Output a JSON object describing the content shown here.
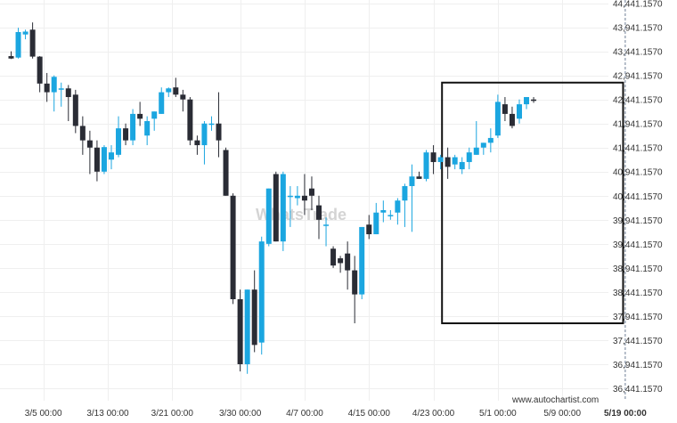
{
  "chart_data": {
    "type": "candlestick",
    "title": "",
    "xlabel": "",
    "ylabel": "",
    "ylim": [
      36191.157,
      44516.157
    ],
    "grid": true,
    "y_ticks": [
      "44,441.1570",
      "43,941.1570",
      "43,441.1570",
      "42,941.1570",
      "42,441.1570",
      "41,941.1570",
      "41,441.1570",
      "40,941.1570",
      "40,441.1570",
      "39,941.1570",
      "39,441.1570",
      "38,941.1570",
      "38,441.1570",
      "37,941.1570",
      "37,441.1570",
      "36,941.1570",
      "36,441.1570"
    ],
    "y_tick_values": [
      44441.157,
      43941.157,
      43441.157,
      42941.157,
      42441.157,
      41941.157,
      41441.157,
      40941.157,
      40441.157,
      39941.157,
      39441.157,
      38941.157,
      38441.157,
      37941.157,
      37441.157,
      36941.157,
      36441.157
    ],
    "x_ticks": [
      "3/5 00:00",
      "3/13 00:00",
      "3/21 00:00",
      "3/30 00:00",
      "4/7 00:00",
      "4/15 00:00",
      "4/23 00:00",
      "5/1 00:00",
      "5/9 00:00"
    ],
    "x_tick_index": [
      4.5,
      13.5,
      22.5,
      32,
      41,
      50,
      59,
      68,
      77
    ],
    "now_label": "5/19 00:00",
    "now_index": 85.8,
    "pattern_box": {
      "start_index": 60.2,
      "end_index": 85.5,
      "high": 42800,
      "low": 37800
    },
    "colors": {
      "up": "#1ba6e0",
      "down": "#2a2c35",
      "grid": "#efefef",
      "box": "#111111",
      "now_line": "#6f7f95"
    },
    "candles": [
      [
        43350,
        43450,
        43290,
        43300
      ],
      [
        43320,
        43940,
        43300,
        43850
      ],
      [
        43800,
        43900,
        43700,
        43860
      ],
      [
        43900,
        44050,
        43300,
        43340
      ],
      [
        43340,
        43350,
        42600,
        42780
      ],
      [
        42780,
        43000,
        42400,
        42600
      ],
      [
        42600,
        42950,
        42200,
        42920
      ],
      [
        42680,
        42800,
        42300,
        42680
      ],
      [
        42680,
        42750,
        42000,
        42500
      ],
      [
        42550,
        42650,
        41750,
        41900
      ],
      [
        41900,
        42100,
        41300,
        41600
      ],
      [
        41600,
        41800,
        40900,
        41450
      ],
      [
        41450,
        41600,
        40750,
        40950
      ],
      [
        40950,
        41500,
        40900,
        41460
      ],
      [
        41200,
        41500,
        41000,
        41350
      ],
      [
        41300,
        42100,
        41250,
        41850
      ],
      [
        41850,
        41950,
        41500,
        41600
      ],
      [
        41600,
        42250,
        41500,
        42150
      ],
      [
        42150,
        42400,
        41900,
        42050
      ],
      [
        41700,
        42100,
        41500,
        42000
      ],
      [
        42050,
        42200,
        41800,
        42200
      ],
      [
        42150,
        42700,
        42150,
        42600
      ],
      [
        42600,
        42700,
        42500,
        42680
      ],
      [
        42700,
        42900,
        42500,
        42550
      ],
      [
        42550,
        42650,
        42200,
        42450
      ],
      [
        42450,
        42500,
        41500,
        41600
      ],
      [
        41600,
        41700,
        41300,
        41500
      ],
      [
        41500,
        42000,
        41100,
        41950
      ],
      [
        41950,
        42100,
        41800,
        41950
      ],
      [
        41950,
        42600,
        41250,
        41600
      ],
      [
        41400,
        41450,
        40450,
        40450
      ],
      [
        40450,
        40500,
        38200,
        38300
      ],
      [
        38300,
        38500,
        36800,
        36950
      ],
      [
        36950,
        38500,
        36750,
        38500
      ],
      [
        38500,
        38900,
        37200,
        37350
      ],
      [
        37400,
        39600,
        37150,
        39500
      ],
      [
        39450,
        40600,
        39400,
        40600
      ],
      [
        40900,
        40950,
        39500,
        39500
      ],
      [
        39500,
        40950,
        39300,
        40900
      ],
      [
        40450,
        40650,
        39800,
        40450
      ],
      [
        40400,
        40650,
        40250,
        40450
      ],
      [
        40450,
        40900,
        40050,
        40350
      ],
      [
        40600,
        40850,
        40150,
        40450
      ],
      [
        40250,
        40450,
        39550,
        39950
      ],
      [
        39850,
        40000,
        39400,
        39850
      ],
      [
        39350,
        39400,
        38950,
        39000
      ],
      [
        39150,
        39200,
        38850,
        39050
      ],
      [
        39250,
        39500,
        38500,
        38900
      ],
      [
        38900,
        39200,
        37800,
        38400
      ],
      [
        38400,
        39800,
        38300,
        39800
      ],
      [
        39850,
        40050,
        39550,
        39650
      ],
      [
        39650,
        40300,
        39650,
        40100
      ],
      [
        40100,
        40350,
        39900,
        40150
      ],
      [
        40050,
        40150,
        39950,
        40050
      ],
      [
        40100,
        40400,
        39850,
        40350
      ],
      [
        40350,
        40700,
        39800,
        40650
      ],
      [
        40650,
        41100,
        39700,
        40850
      ],
      [
        40850,
        40950,
        40800,
        40800
      ],
      [
        40800,
        41400,
        40750,
        41350
      ],
      [
        41350,
        41500,
        40900,
        41150
      ],
      [
        41150,
        41300,
        41000,
        41250
      ],
      [
        41250,
        41450,
        40800,
        41050
      ],
      [
        41100,
        41300,
        41000,
        41250
      ],
      [
        41000,
        41250,
        40900,
        41150
      ],
      [
        41150,
        41450,
        41000,
        41350
      ],
      [
        41300,
        42000,
        41300,
        41450
      ],
      [
        41450,
        41550,
        41300,
        41550
      ],
      [
        41550,
        41850,
        41350,
        41650
      ],
      [
        41700,
        42550,
        41650,
        42400
      ],
      [
        42350,
        42500,
        42000,
        42150
      ],
      [
        42150,
        42300,
        41850,
        41900
      ],
      [
        42050,
        42450,
        41950,
        42350
      ],
      [
        42350,
        42500,
        42250,
        42500
      ],
      [
        42450,
        42500,
        42380,
        42420
      ]
    ]
  },
  "watermark": "WhatsTrade",
  "credit": "www.autochartist.com"
}
